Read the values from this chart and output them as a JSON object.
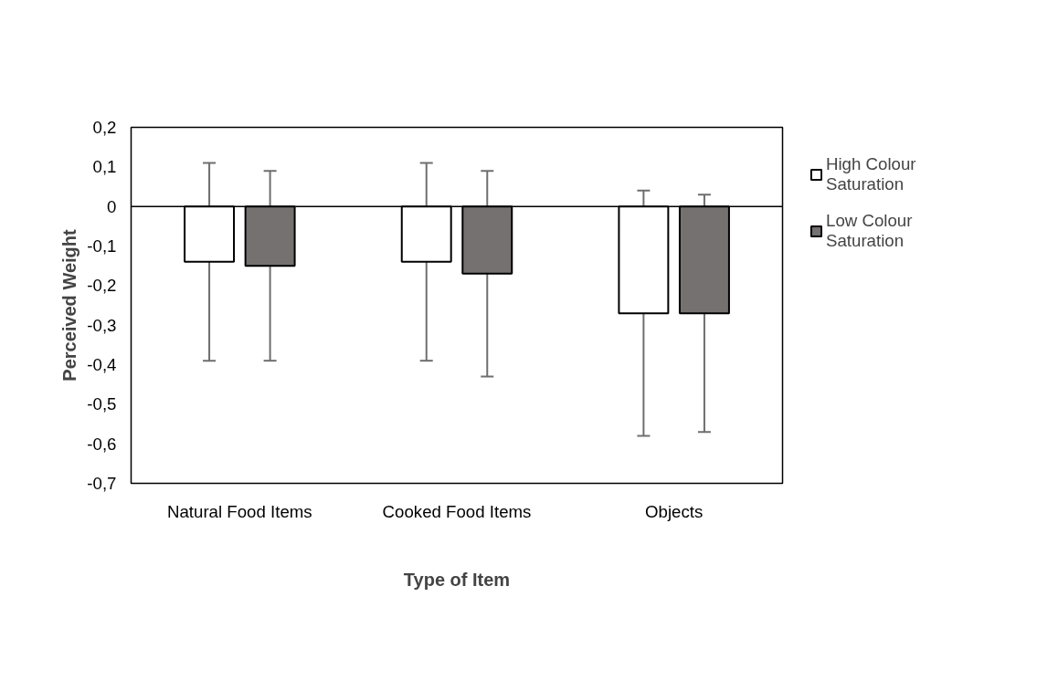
{
  "chart_data": {
    "type": "bar",
    "xlabel": "Type of Item",
    "ylabel": "Perceived Weight",
    "categories": [
      "Natural Food Items",
      "Cooked Food Items",
      "Objects"
    ],
    "series": [
      {
        "name": "High Colour Saturation",
        "color": "#ffffff",
        "values": [
          -0.14,
          -0.14,
          -0.27
        ],
        "errors": [
          0.25,
          0.25,
          0.31
        ]
      },
      {
        "name": "Low Colour Saturation",
        "color": "#767171",
        "values": [
          -0.15,
          -0.17,
          -0.27
        ],
        "errors": [
          0.24,
          0.26,
          0.3
        ]
      }
    ],
    "ylim": [
      -0.7,
      0.2
    ],
    "yticks": [
      {
        "value": 0.2,
        "label": "0,2"
      },
      {
        "value": 0.1,
        "label": "0,1"
      },
      {
        "value": 0,
        "label": "0"
      },
      {
        "value": -0.1,
        "label": "-0,1"
      },
      {
        "value": -0.2,
        "label": "-0,2"
      },
      {
        "value": -0.3,
        "label": "-0,3"
      },
      {
        "value": -0.4,
        "label": "-0,4"
      },
      {
        "value": -0.5,
        "label": "-0,5"
      },
      {
        "value": -0.6,
        "label": "-0,6"
      },
      {
        "value": -0.7,
        "label": "-0,7"
      }
    ],
    "ref_lines": [
      {
        "axis": "y",
        "value": 0,
        "color": "#000000"
      }
    ],
    "grid": false,
    "legend": "right"
  }
}
